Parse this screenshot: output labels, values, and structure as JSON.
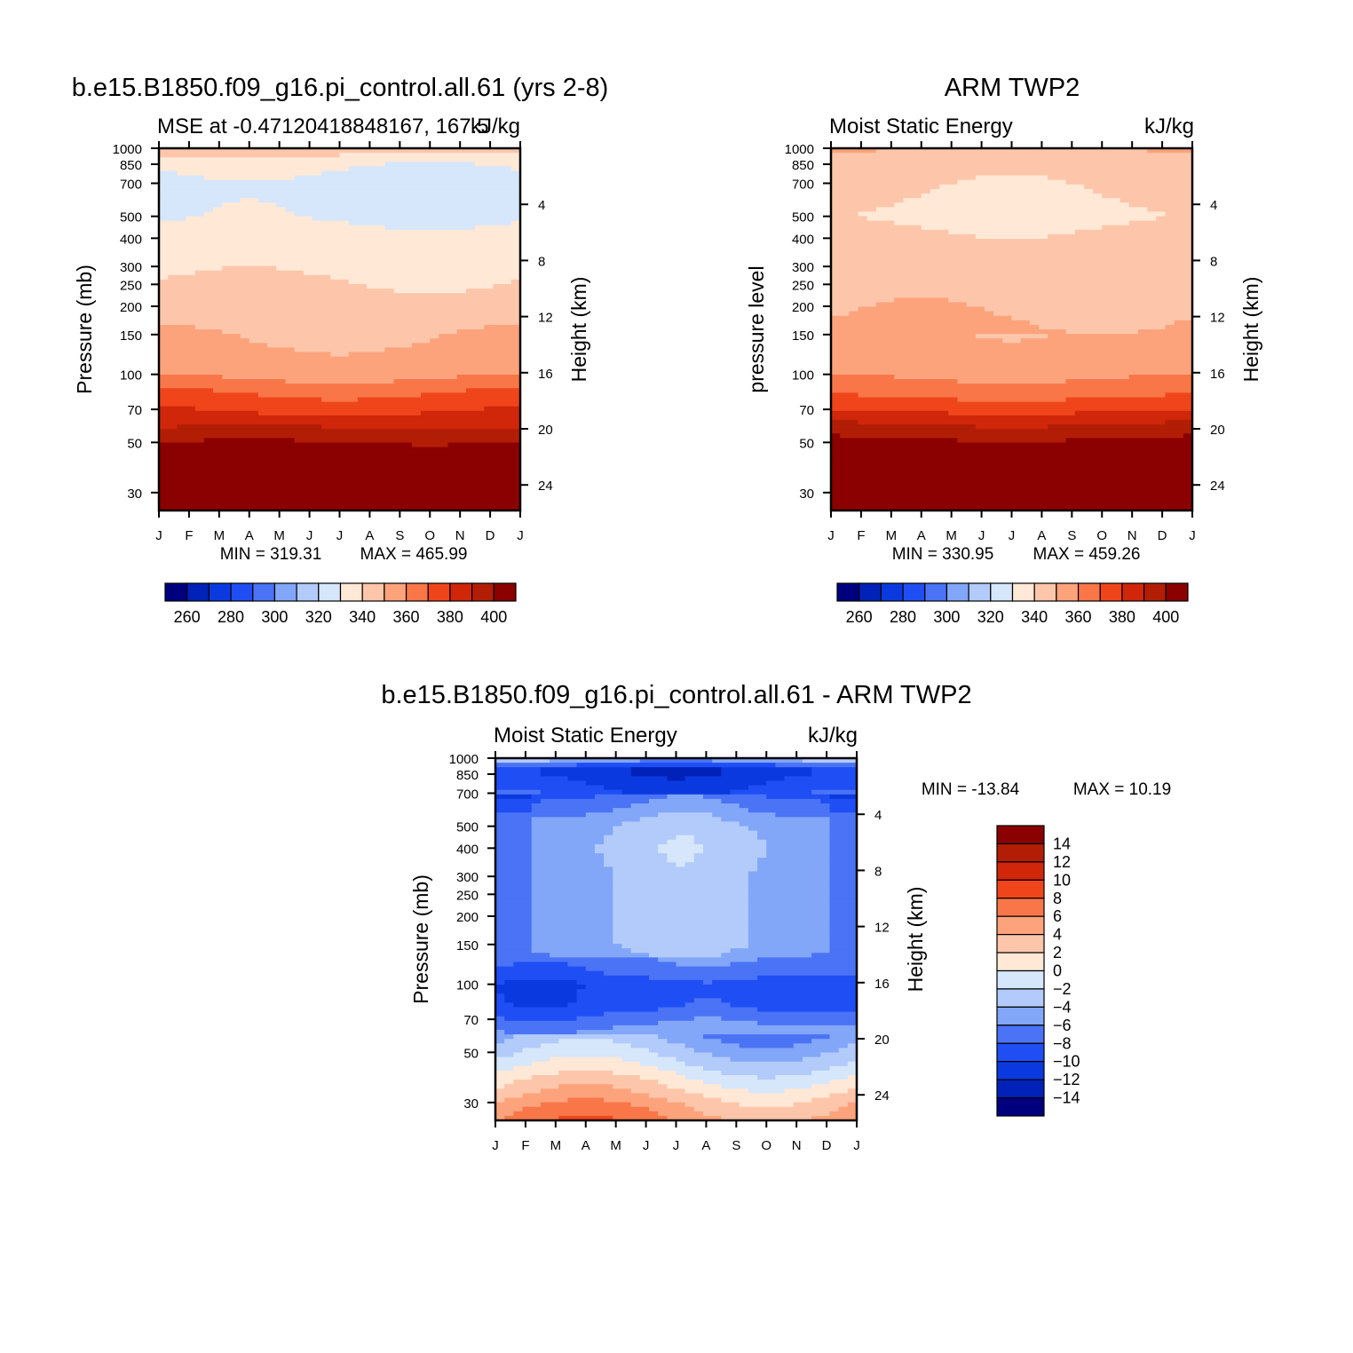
{
  "palette": [
    "#00007f",
    "#0022b8",
    "#0a3adf",
    "#1f4ef5",
    "#4a73f5",
    "#82a6f8",
    "#b2cbfa",
    "#d6e6fb",
    "#ffe8d6",
    "#fdc6aa",
    "#fca37c",
    "#f87648",
    "#f0451a",
    "#d0260a",
    "#b21d06",
    "#8b0000"
  ],
  "chart_data": [
    {
      "id": "model",
      "type": "heatmap",
      "title": "b.e15.B1850.f09_g16.pi_control.all.61 (yrs 2-8)",
      "left_subtitle": "MSE at -0.47120418848167,  167.5",
      "right_subtitle": "kJ/kg",
      "ylabel": "Pressure (mb)",
      "y2label": "Height (km)",
      "months": [
        "J",
        "F",
        "M",
        "A",
        "M",
        "J",
        "J",
        "A",
        "S",
        "O",
        "N",
        "D",
        "J"
      ],
      "pressure_ticks": [
        30,
        50,
        70,
        100,
        150,
        200,
        250,
        300,
        400,
        500,
        700,
        850,
        1000
      ],
      "height_ticks": [
        4,
        8,
        12,
        16,
        20,
        24
      ],
      "ylim_mb": [
        1000,
        25
      ],
      "min_label": "MIN = 319.31",
      "max_label": "MAX = 465.99",
      "levels": [
        260,
        270,
        280,
        290,
        300,
        310,
        320,
        330,
        340,
        350,
        360,
        370,
        380,
        390,
        400
      ],
      "colorbar_labels": [
        "260",
        "280",
        "300",
        "320",
        "340",
        "360",
        "380",
        "400"
      ],
      "mse_profile": [
        [
          1000,
          348
        ],
        [
          925,
          339
        ],
        [
          850,
          331
        ],
        [
          700,
          328
        ],
        [
          500,
          329
        ],
        [
          400,
          333
        ],
        [
          300,
          338
        ],
        [
          200,
          344
        ],
        [
          150,
          349
        ],
        [
          100,
          357
        ],
        [
          85,
          368
        ],
        [
          70,
          378
        ],
        [
          60,
          388
        ],
        [
          50,
          400
        ],
        [
          30,
          440
        ],
        [
          25,
          460
        ]
      ]
    },
    {
      "id": "obs",
      "type": "heatmap",
      "title": "ARM TWP2",
      "left_subtitle": "Moist Static Energy",
      "right_subtitle": "kJ/kg",
      "ylabel": "pressure level",
      "y2label": "Height (km)",
      "months": [
        "J",
        "F",
        "M",
        "A",
        "M",
        "J",
        "J",
        "A",
        "S",
        "O",
        "N",
        "D",
        "J"
      ],
      "pressure_ticks": [
        30,
        50,
        70,
        100,
        150,
        200,
        250,
        300,
        400,
        500,
        700,
        850,
        1000
      ],
      "height_ticks": [
        4,
        8,
        12,
        16,
        20,
        24
      ],
      "ylim_mb": [
        1000,
        25
      ],
      "min_label": "MIN = 330.95",
      "max_label": "MAX = 459.26",
      "levels": [
        260,
        270,
        280,
        290,
        300,
        310,
        320,
        330,
        340,
        350,
        360,
        370,
        380,
        390,
        400
      ],
      "colorbar_labels": [
        "260",
        "280",
        "300",
        "320",
        "340",
        "360",
        "380",
        "400"
      ],
      "mse_profile": [
        [
          1000,
          350
        ],
        [
          900,
          344
        ],
        [
          700,
          341
        ],
        [
          500,
          338
        ],
        [
          400,
          342
        ],
        [
          300,
          347
        ],
        [
          200,
          349
        ],
        [
          140,
          352
        ],
        [
          100,
          358
        ],
        [
          85,
          365
        ],
        [
          70,
          378
        ],
        [
          60,
          390
        ],
        [
          52,
          400
        ],
        [
          30,
          440
        ],
        [
          25,
          459
        ]
      ]
    },
    {
      "id": "diff",
      "type": "heatmap",
      "title": "b.e15.B1850.f09_g16.pi_control.all.61 - ARM TWP2",
      "left_subtitle": "Moist Static Energy",
      "right_subtitle": "kJ/kg",
      "ylabel": "Pressure (mb)",
      "y2label": "Height (km)",
      "months": [
        "J",
        "F",
        "M",
        "A",
        "M",
        "J",
        "J",
        "A",
        "S",
        "O",
        "N",
        "D",
        "J"
      ],
      "pressure_ticks": [
        30,
        50,
        70,
        100,
        150,
        200,
        250,
        300,
        400,
        500,
        700,
        850,
        1000
      ],
      "height_ticks": [
        4,
        8,
        12,
        16,
        20,
        24
      ],
      "ylim_mb": [
        1000,
        25
      ],
      "min_label": "MIN = -13.84",
      "max_label": "MAX =   10.19",
      "levels": [
        -14,
        -12,
        -10,
        -8,
        -6,
        -4,
        -2,
        0,
        2,
        4,
        6,
        8,
        10,
        12,
        14
      ],
      "colorbar_labels": [
        "14",
        "12",
        "10",
        "8",
        "6",
        "4",
        "2",
        "0",
        "−2",
        "−4",
        "−6",
        "−8",
        "−10",
        "−12",
        "−14"
      ],
      "mse_profile": [
        [
          1000,
          -3
        ],
        [
          950,
          -7
        ],
        [
          900,
          -11
        ],
        [
          850,
          -11
        ],
        [
          700,
          -9
        ],
        [
          500,
          -5
        ],
        [
          400,
          -4.5
        ],
        [
          300,
          -5
        ],
        [
          200,
          -5
        ],
        [
          150,
          -5
        ],
        [
          110,
          -8
        ],
        [
          100,
          -9.5
        ],
        [
          80,
          -9
        ],
        [
          70,
          -7
        ],
        [
          60,
          -5
        ],
        [
          50,
          -3
        ],
        [
          40,
          0
        ],
        [
          30,
          4
        ],
        [
          25,
          6
        ]
      ]
    }
  ]
}
